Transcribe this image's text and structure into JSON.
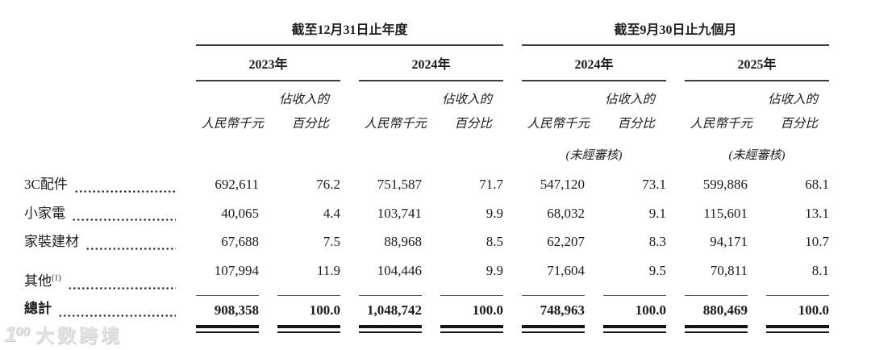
{
  "table": {
    "group_headers": [
      {
        "label": "截至12月31日止年度"
      },
      {
        "label": "截至9月30日止九個月"
      }
    ],
    "year_headers": [
      "2023年",
      "2024年",
      "2024年",
      "2025年"
    ],
    "col_headers": {
      "amount": "人民幣千元",
      "pct_line1": "佔收入的",
      "pct_line2": "百分比",
      "unaudited": "(未經審核)"
    },
    "rows": [
      {
        "label": "3C配件",
        "values": [
          "692,611",
          "76.2",
          "751,587",
          "71.7",
          "547,120",
          "73.1",
          "599,886",
          "68.1"
        ]
      },
      {
        "label": "小家電",
        "values": [
          "40,065",
          "4.4",
          "103,741",
          "9.9",
          "68,032",
          "9.1",
          "115,601",
          "13.1"
        ]
      },
      {
        "label": "家裝建材",
        "values": [
          "67,688",
          "7.5",
          "88,968",
          "8.5",
          "62,207",
          "8.3",
          "94,171",
          "10.7"
        ]
      },
      {
        "label": "其他",
        "superscript": "(1)",
        "values": [
          "107,994",
          "11.9",
          "104,446",
          "9.9",
          "71,604",
          "9.5",
          "70,811",
          "8.1"
        ]
      }
    ],
    "total_row": {
      "label": "總計",
      "values": [
        "908,358",
        "100.0",
        "1,048,742",
        "100.0",
        "748,963",
        "100.0",
        "880,469",
        "100.0"
      ]
    }
  },
  "watermark": {
    "logo_number": "1",
    "logo_zeros": "00",
    "text": "大数跨境"
  }
}
